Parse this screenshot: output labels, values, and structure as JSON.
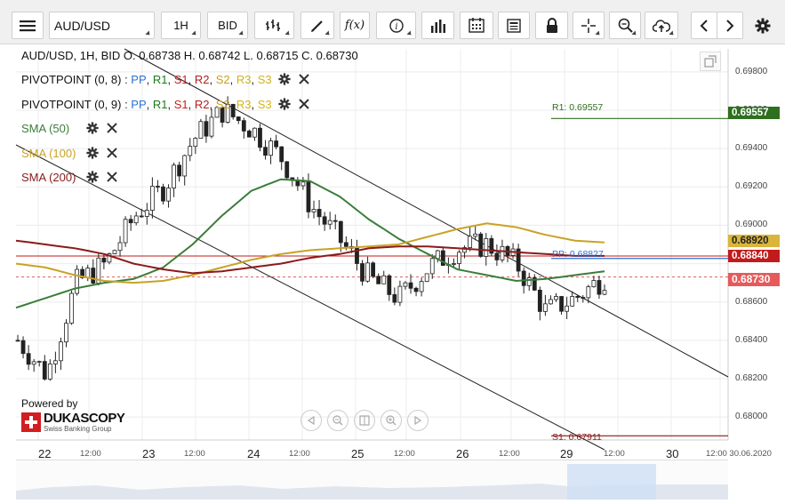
{
  "toolbar": {
    "symbol": "AUD/USD",
    "timeframe": "1H",
    "price_type": "BID",
    "icons": [
      "menu-icon",
      "bar-style-icon",
      "draw-icon",
      "function-icon",
      "info-icon",
      "indicators-icon",
      "calendar-icon",
      "news-icon",
      "lock-icon",
      "crosshair-icon",
      "zoom-icon",
      "cloud-upload-icon",
      "prev-icon",
      "next-icon",
      "settings-icon"
    ],
    "fx_label": "f(x)"
  },
  "legend": {
    "ohlc": "AUD/USD, 1H, BID    O. 0.68738 H. 0.68742 L. 0.68715 C. 0.68730",
    "pivot1": {
      "name": "PIVOTPOINT (0, 8)",
      "sep": " : ",
      "pp": "PP",
      "r1": "R1",
      "s1": "S1",
      "r2": "R2",
      "s2": "S2",
      "r3": "R3",
      "s3": "S3"
    },
    "pivot2": {
      "name": "PIVOTPOINT (0, 9)",
      "sep": " : ",
      "pp": "PP",
      "r1": "R1",
      "s1": "S1",
      "r2": "R2",
      "s2": "S2",
      "r3": "R3",
      "s3": "S3"
    },
    "sma50": "SMA (50)",
    "sma100": "SMA (100)",
    "sma200": "SMA (200)",
    "colors": {
      "sma50": "#3a7d3a",
      "sma100": "#c9a227",
      "sma200": "#8b1a1a"
    }
  },
  "price_axis": {
    "labels": [
      "0.69800",
      "0.69600",
      "0.69400",
      "0.69200",
      "0.69000",
      "0.68600",
      "0.68400",
      "0.68200",
      "0.68000"
    ],
    "tags": {
      "r1": "0.69557",
      "sma100": "0.68920",
      "pp": "0.68840",
      "last": "0.68730"
    }
  },
  "chart_labels": {
    "r1": "R1: 0.69557",
    "pp": "PP: 0.68827",
    "s1": "S1: 0.67911"
  },
  "time_axis": {
    "dates": [
      "22",
      "23",
      "24",
      "25",
      "26",
      "29",
      "30"
    ],
    "times": [
      "12:00",
      "12:00",
      "12:00",
      "12:00",
      "12:00",
      "12:00",
      "12:00 30.06.2020"
    ]
  },
  "branding": {
    "powered_by": "Powered by",
    "name": "DUKASCOPY",
    "tagline": "Swiss Banking Group"
  },
  "chart_data": {
    "type": "candlestick",
    "symbol": "AUD/USD",
    "interval": "1H",
    "price_range": [
      0.6788,
      0.6992
    ],
    "last_close": 0.6873,
    "levels": {
      "R1": 0.69557,
      "PP": 0.68827,
      "S1": 0.67911
    },
    "series": [
      {
        "name": "SMA (50)",
        "values": [
          0.6857,
          0.6862,
          0.6867,
          0.687,
          0.6872,
          0.6878,
          0.689,
          0.6905,
          0.6918,
          0.6924,
          0.6923,
          0.6915,
          0.6903,
          0.6893,
          0.6885,
          0.6877,
          0.6874,
          0.6871,
          0.6872,
          0.6874,
          0.6876
        ]
      },
      {
        "name": "SMA (100)",
        "values": [
          0.688,
          0.6878,
          0.6874,
          0.6871,
          0.687,
          0.6871,
          0.6874,
          0.6878,
          0.6882,
          0.6885,
          0.6887,
          0.6888,
          0.6889,
          0.689,
          0.6894,
          0.6898,
          0.6901,
          0.6899,
          0.6895,
          0.6892,
          0.6891
        ]
      },
      {
        "name": "SMA (200)",
        "values": [
          0.6892,
          0.689,
          0.6888,
          0.6885,
          0.688,
          0.6877,
          0.6875,
          0.6876,
          0.6878,
          0.688,
          0.6883,
          0.6885,
          0.6888,
          0.6889,
          0.6889,
          0.6888,
          0.6887,
          0.6886,
          0.6885,
          0.6884,
          0.6884
        ]
      },
      {
        "name": "Close",
        "values": [
          0.684,
          0.6822,
          0.687,
          0.688,
          0.6905,
          0.692,
          0.6945,
          0.696,
          0.695,
          0.6935,
          0.691,
          0.6892,
          0.6872,
          0.6862,
          0.6878,
          0.6888,
          0.689,
          0.688,
          0.6855,
          0.6862,
          0.6873
        ]
      }
    ]
  }
}
